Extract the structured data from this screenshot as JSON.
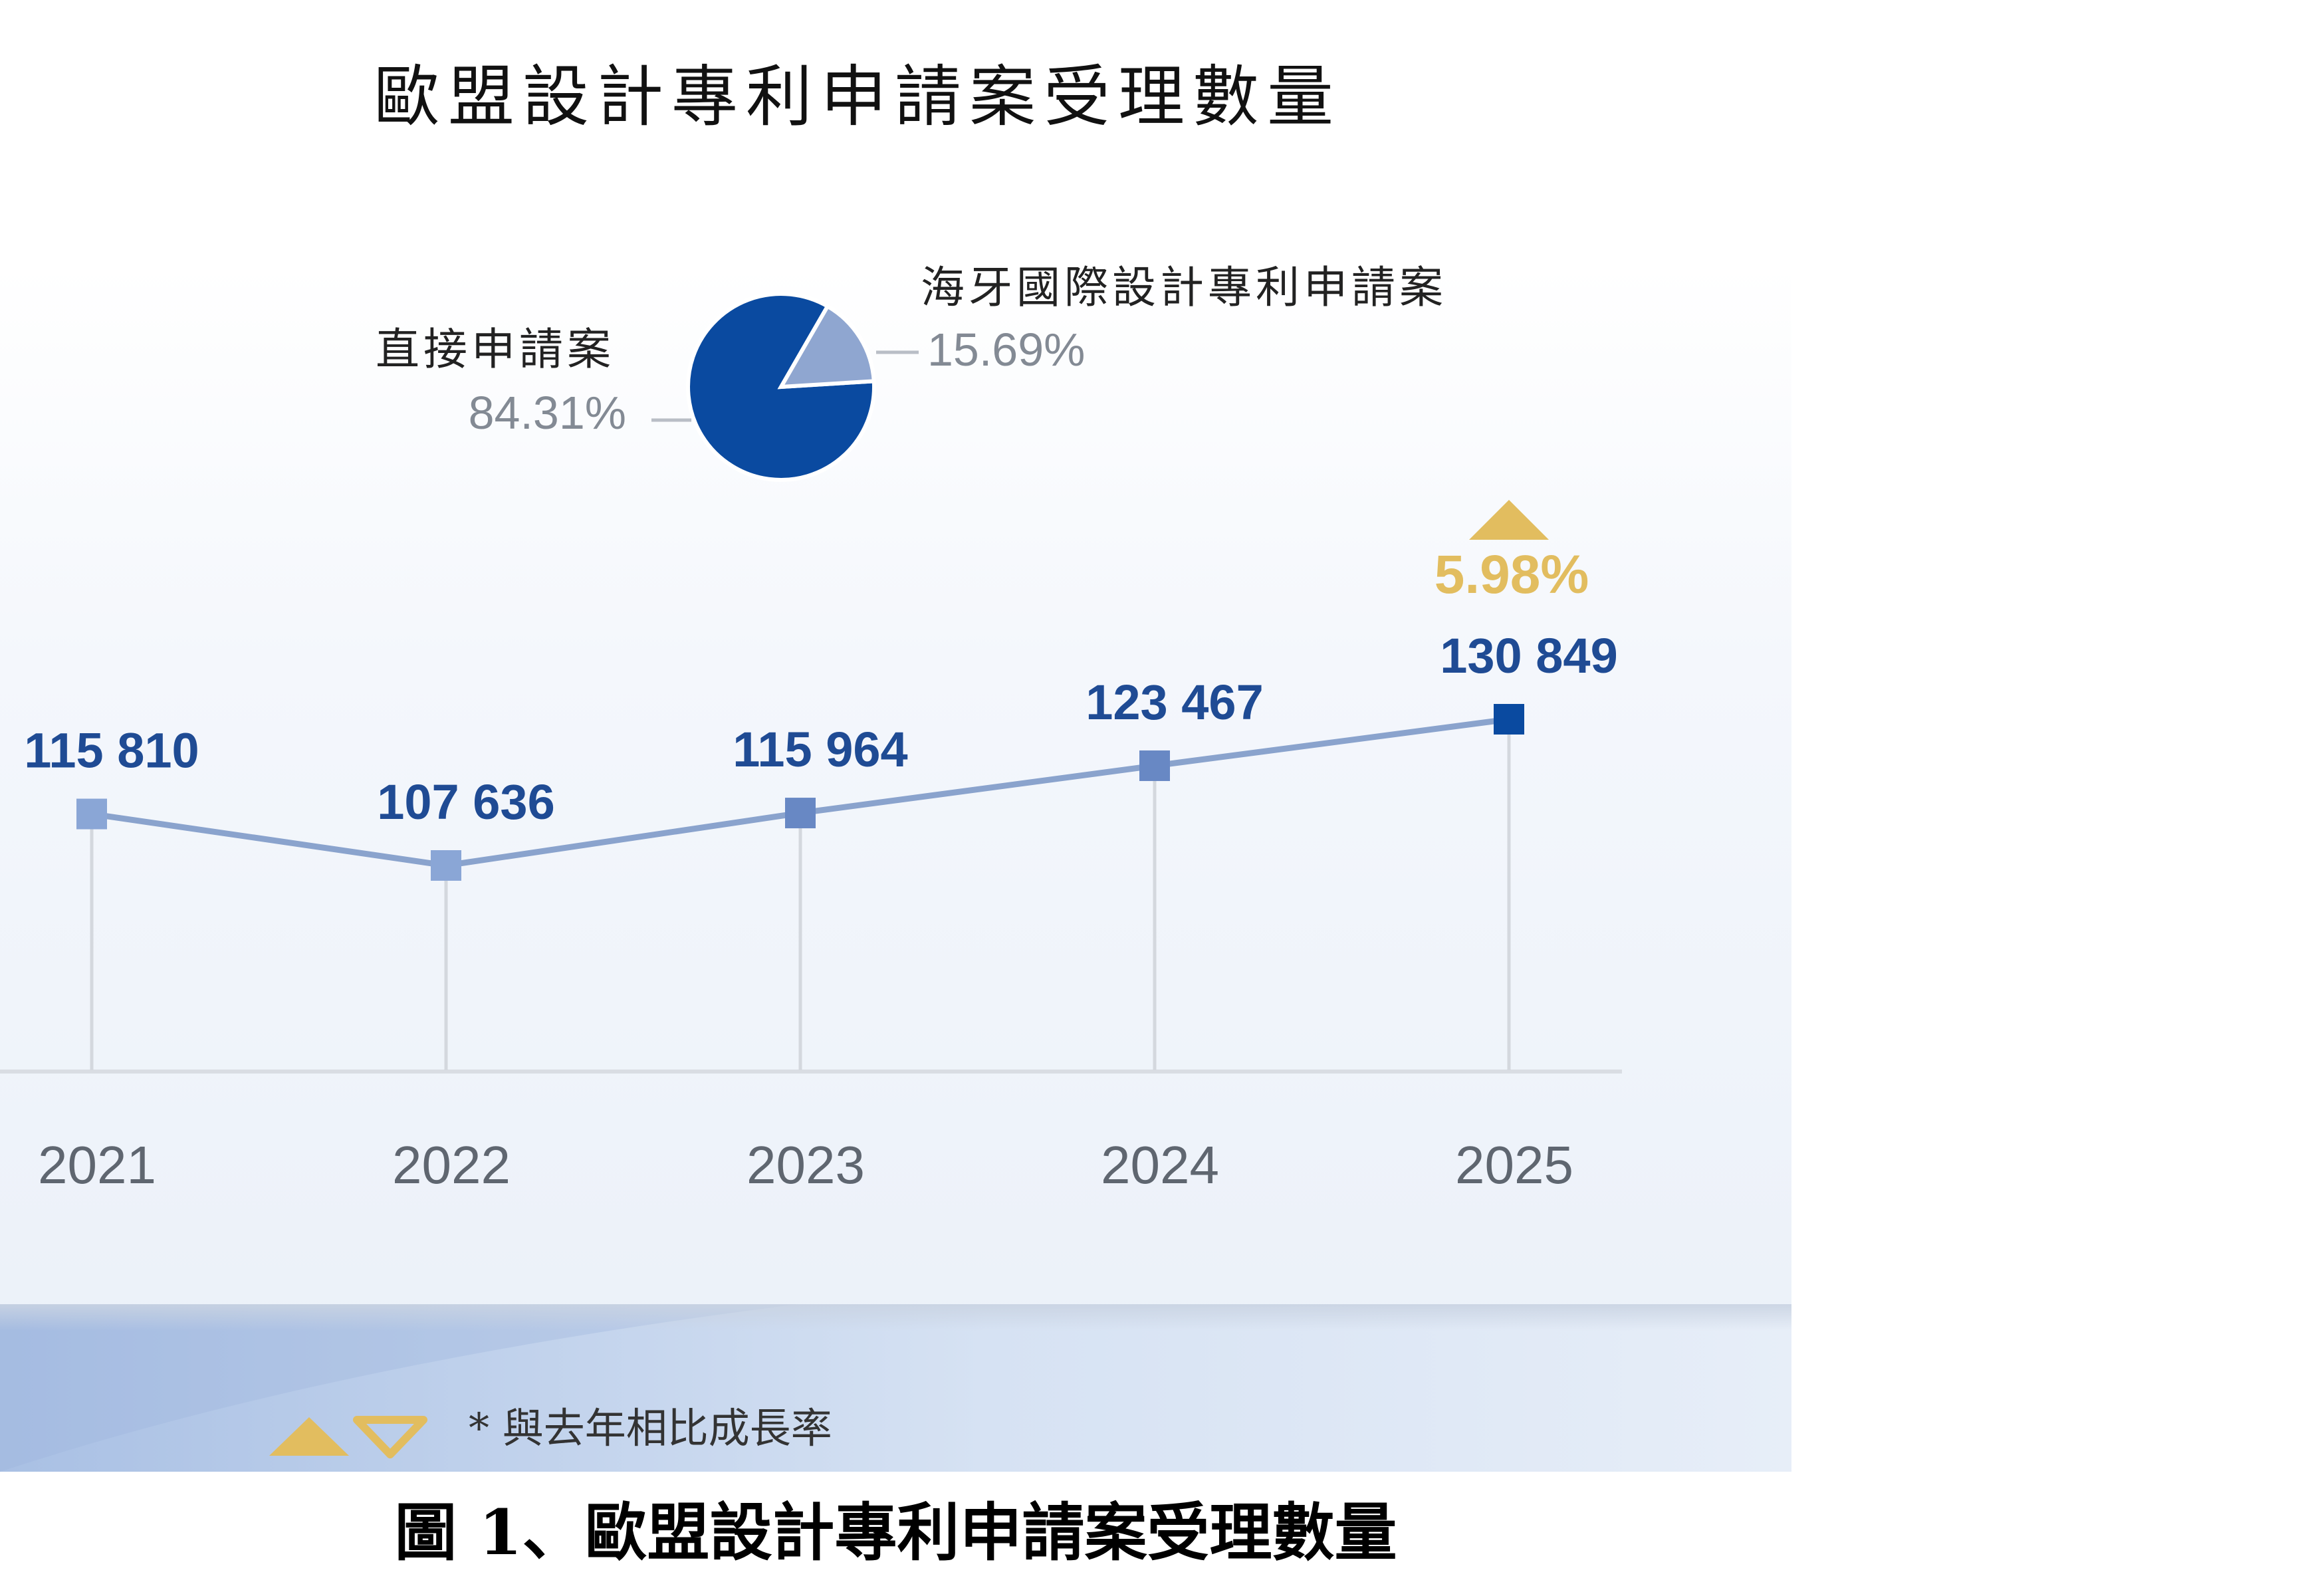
{
  "title": "歐盟設計專利申請案受理數量",
  "caption": "圖 1、歐盟設計專利申請案受理數量",
  "legend_note": "* 與去年相比成長率",
  "colors": {
    "line": "#8aa3cd",
    "marker": "#6888c4",
    "marker_latest": "#0a4aa0",
    "value_text": "#1f4b94",
    "growth": "#e2bd5f",
    "pie_main": "#0a4aa0",
    "pie_minor": "#8fa6d0"
  },
  "chart_data": [
    {
      "type": "line",
      "title": "歐盟設計專利申請案受理數量",
      "x": [
        "2021",
        "2022",
        "2023",
        "2024",
        "2025"
      ],
      "series": [
        {
          "values": [
            115810,
            107636,
            115964,
            123467,
            130849
          ],
          "labels": [
            "115 810",
            "107 636",
            "115 964",
            "123 467",
            "130 849"
          ]
        }
      ],
      "ylim": [
        85000,
        140000
      ],
      "grid": false,
      "annotations": [
        {
          "x": "2025",
          "text": "5.98%",
          "icon": "triangle-up-icon"
        }
      ]
    },
    {
      "type": "pie",
      "slices": [
        {
          "label": "直接申請案",
          "value": 84.31,
          "text": "84.31%"
        },
        {
          "label": "海牙國際設計專利申請案",
          "value": 15.69,
          "text": "15.69%"
        }
      ]
    }
  ]
}
